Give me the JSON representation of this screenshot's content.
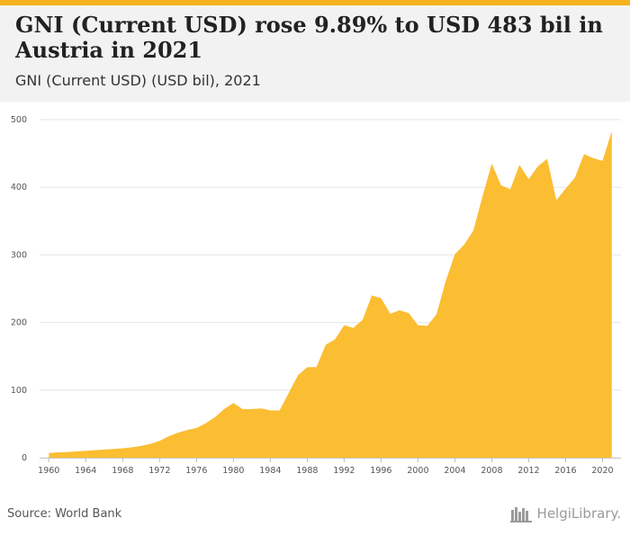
{
  "header": {
    "title": "GNI (Current USD) rose 9.89% to USD 483 bil in Austria in 2021",
    "subtitle": "GNI (Current USD) (USD bil), 2021"
  },
  "footer": {
    "source": "Source: World Bank",
    "logo_text": "HelgiLibrary."
  },
  "colors": {
    "accent": "#f5b21a",
    "area_fill": "#fbbd32",
    "grid": "#e5e5e5",
    "header_bg": "#f2f2f2"
  },
  "chart_data": {
    "type": "area",
    "title": "GNI (Current USD) rose 9.89% to USD 483 bil in Austria in 2021",
    "subtitle": "GNI (Current USD) (USD bil), 2021",
    "xlabel": "",
    "ylabel": "",
    "ylim": [
      0,
      500
    ],
    "yticks": [
      0,
      100,
      200,
      300,
      400,
      500
    ],
    "xlim": [
      1959,
      2022
    ],
    "xticks": [
      1960,
      1964,
      1968,
      1972,
      1976,
      1980,
      1984,
      1988,
      1992,
      1996,
      2000,
      2004,
      2008,
      2012,
      2016,
      2020
    ],
    "grid": true,
    "legend": "none",
    "x": [
      1960,
      1961,
      1962,
      1963,
      1964,
      1965,
      1966,
      1967,
      1968,
      1969,
      1970,
      1971,
      1972,
      1973,
      1974,
      1975,
      1976,
      1977,
      1978,
      1979,
      1980,
      1981,
      1982,
      1983,
      1984,
      1985,
      1986,
      1987,
      1988,
      1989,
      1990,
      1991,
      1992,
      1993,
      1994,
      1995,
      1996,
      1997,
      1998,
      1999,
      2000,
      2001,
      2002,
      2003,
      2004,
      2005,
      2006,
      2007,
      2008,
      2009,
      2010,
      2011,
      2012,
      2013,
      2014,
      2015,
      2016,
      2017,
      2018,
      2019,
      2020,
      2021
    ],
    "values": [
      7,
      8,
      8.5,
      9.3,
      10.3,
      11.2,
      12.2,
      13,
      14,
      15.5,
      17.5,
      20.5,
      25,
      32,
      37,
      41,
      44,
      51,
      60,
      72,
      81,
      72,
      72,
      73,
      70,
      70,
      96,
      122,
      134,
      134,
      167,
      175,
      196,
      192,
      204,
      240,
      236,
      213,
      218,
      214,
      196,
      195,
      212,
      261,
      301,
      315,
      336,
      387,
      435,
      403,
      397,
      433,
      412,
      431,
      442,
      381,
      398,
      414,
      449,
      443,
      439,
      483
    ]
  }
}
